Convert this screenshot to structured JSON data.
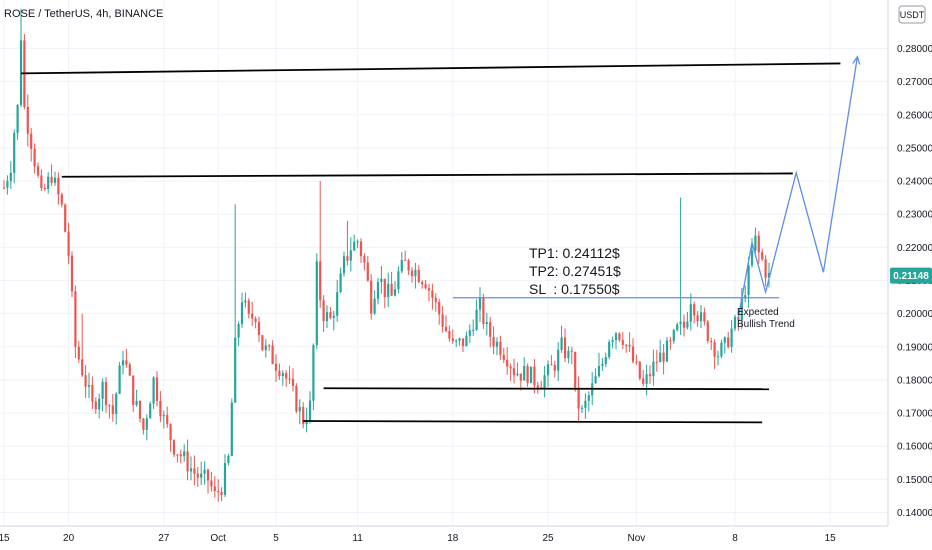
{
  "header": {
    "symbol_line": "ROSE / TetherUS, 4h, BINANCE",
    "currency_label": "USDT"
  },
  "colors": {
    "up": "#26a69a",
    "down": "#ef5350",
    "price_badge": "#26a69a",
    "projection": "#5b8def",
    "level_line": "#000000",
    "entry_line": "#5b8def"
  },
  "chart_data": {
    "type": "candlestick",
    "symbol": "ROSE / TetherUS",
    "interval": "4h",
    "exchange": "BINANCE",
    "ylim": [
      0.135,
      0.29
    ],
    "y_ticks": [
      "0.28000",
      "0.27000",
      "0.26000",
      "0.25000",
      "0.24000",
      "0.23000",
      "0.22000",
      "0.21000",
      "0.20000",
      "0.19000",
      "0.18000",
      "0.17000",
      "0.16000",
      "0.15000",
      "0.14000"
    ],
    "x_tick_labels": [
      "15",
      "20",
      "27",
      "Oct",
      "5",
      "11",
      "18",
      "25",
      "Nov",
      "8",
      "15"
    ],
    "current_price": "0.21148",
    "price_path": [
      [
        0,
        0.238
      ],
      [
        2,
        0.245
      ],
      [
        3,
        0.255
      ],
      [
        4,
        0.262
      ],
      [
        5,
        0.284
      ],
      [
        6,
        0.262
      ],
      [
        8,
        0.252
      ],
      [
        11,
        0.235
      ],
      [
        14,
        0.242
      ],
      [
        17,
        0.232
      ],
      [
        19,
        0.218
      ],
      [
        21,
        0.19
      ],
      [
        23,
        0.183
      ],
      [
        26,
        0.172
      ],
      [
        29,
        0.178
      ],
      [
        32,
        0.17
      ],
      [
        35,
        0.188
      ],
      [
        38,
        0.175
      ],
      [
        41,
        0.165
      ],
      [
        44,
        0.18
      ],
      [
        47,
        0.168
      ],
      [
        50,
        0.16
      ],
      [
        53,
        0.156
      ],
      [
        56,
        0.152
      ],
      [
        58,
        0.15
      ],
      [
        60,
        0.15
      ],
      [
        62,
        0.145
      ],
      [
        64,
        0.148
      ],
      [
        66,
        0.156
      ],
      [
        68,
        0.19
      ],
      [
        70,
        0.205
      ],
      [
        72,
        0.198
      ],
      [
        74,
        0.2
      ],
      [
        76,
        0.19
      ],
      [
        78,
        0.188
      ],
      [
        80,
        0.185
      ],
      [
        82,
        0.183
      ],
      [
        84,
        0.178
      ],
      [
        86,
        0.173
      ],
      [
        88,
        0.168
      ],
      [
        90,
        0.172
      ],
      [
        91,
        0.19
      ],
      [
        92,
        0.213
      ],
      [
        93,
        0.205
      ],
      [
        94,
        0.2
      ],
      [
        96,
        0.198
      ],
      [
        98,
        0.205
      ],
      [
        100,
        0.215
      ],
      [
        102,
        0.22
      ],
      [
        104,
        0.222
      ],
      [
        106,
        0.215
      ],
      [
        108,
        0.203
      ],
      [
        110,
        0.212
      ],
      [
        112,
        0.207
      ],
      [
        114,
        0.205
      ],
      [
        116,
        0.212
      ],
      [
        118,
        0.215
      ],
      [
        120,
        0.214
      ],
      [
        122,
        0.212
      ],
      [
        124,
        0.21
      ],
      [
        126,
        0.205
      ],
      [
        128,
        0.2
      ],
      [
        130,
        0.195
      ],
      [
        132,
        0.19
      ],
      [
        134,
        0.191
      ],
      [
        136,
        0.192
      ],
      [
        138,
        0.198
      ],
      [
        140,
        0.202
      ],
      [
        142,
        0.195
      ],
      [
        144,
        0.192
      ],
      [
        146,
        0.19
      ],
      [
        148,
        0.187
      ],
      [
        150,
        0.183
      ],
      [
        152,
        0.182
      ],
      [
        154,
        0.182
      ],
      [
        156,
        0.18
      ],
      [
        158,
        0.18
      ],
      [
        160,
        0.182
      ],
      [
        162,
        0.185
      ],
      [
        164,
        0.19
      ],
      [
        166,
        0.187
      ],
      [
        167,
        0.19
      ],
      [
        168,
        0.175
      ],
      [
        170,
        0.17
      ],
      [
        172,
        0.175
      ],
      [
        174,
        0.18
      ],
      [
        176,
        0.185
      ],
      [
        178,
        0.193
      ],
      [
        180,
        0.195
      ],
      [
        182,
        0.193
      ],
      [
        184,
        0.188
      ],
      [
        186,
        0.183
      ],
      [
        188,
        0.178
      ],
      [
        190,
        0.182
      ],
      [
        192,
        0.186
      ],
      [
        194,
        0.188
      ],
      [
        196,
        0.19
      ],
      [
        198,
        0.195
      ],
      [
        200,
        0.196
      ],
      [
        201,
        0.2
      ],
      [
        202,
        0.205
      ],
      [
        204,
        0.2
      ],
      [
        206,
        0.196
      ],
      [
        208,
        0.192
      ],
      [
        210,
        0.188
      ],
      [
        212,
        0.19
      ],
      [
        214,
        0.195
      ],
      [
        216,
        0.198
      ],
      [
        218,
        0.208
      ],
      [
        219,
        0.212
      ],
      [
        220,
        0.218
      ],
      [
        221,
        0.222
      ],
      [
        222,
        0.218
      ],
      [
        223,
        0.216
      ],
      [
        224,
        0.213
      ],
      [
        225,
        0.211
      ]
    ],
    "levels": [
      {
        "name": "resistance-top",
        "from": [
          5,
          0.2725
        ],
        "to": [
          246,
          0.2755
        ],
        "color": "#000000"
      },
      {
        "name": "resistance-2",
        "from": [
          17,
          0.2413
        ],
        "to": [
          232,
          0.2423
        ],
        "color": "#000000"
      },
      {
        "name": "entry",
        "from": [
          132,
          0.2048
        ],
        "to": [
          228,
          0.2048
        ],
        "color": "#5b8def"
      },
      {
        "name": "support-1",
        "from": [
          94,
          0.1775
        ],
        "to": [
          225,
          0.1772
        ],
        "color": "#000000"
      },
      {
        "name": "support-2",
        "from": [
          88,
          0.1676
        ],
        "to": [
          223,
          0.1672
        ],
        "color": "#000000"
      }
    ],
    "projection": [
      [
        216,
        0.199
      ],
      [
        220,
        0.2215
      ],
      [
        224,
        0.2065
      ],
      [
        233,
        0.2425
      ],
      [
        241,
        0.2125
      ],
      [
        251,
        0.2775
      ]
    ],
    "annotations": {
      "targets": [
        "TP1: 0.24112$",
        "TP2: 0.27451$",
        "SL  : 0.17550$"
      ],
      "trend_line1": "Expected",
      "trend_line2": "Bullish Trend"
    }
  }
}
